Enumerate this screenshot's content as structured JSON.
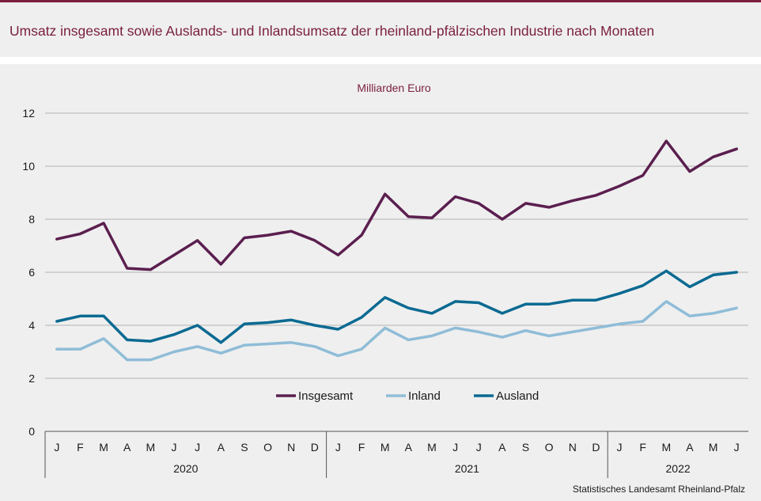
{
  "header": {
    "title": "Umsatz insgesamt sowie Auslands- und Inlandsumsatz der rheinland-pfälzischen Industrie nach Monaten"
  },
  "colors": {
    "accent": "#7a1f3d",
    "panel_background": "#efefef",
    "grid": "#b3b3b3",
    "axis": "#555555"
  },
  "chart_data": {
    "type": "line",
    "subtitle": "Milliarden Euro",
    "ylim": [
      0,
      12
    ],
    "yticks": [
      0,
      2,
      4,
      6,
      8,
      10,
      12
    ],
    "grid": true,
    "legend_position": "bottom-center",
    "categories": [
      "J",
      "F",
      "M",
      "A",
      "M",
      "J",
      "J",
      "A",
      "S",
      "O",
      "N",
      "D",
      "J",
      "F",
      "M",
      "A",
      "M",
      "J",
      "J",
      "A",
      "S",
      "O",
      "N",
      "D",
      "J",
      "F",
      "M",
      "A",
      "M",
      "J"
    ],
    "years": [
      {
        "label": "2020",
        "months": 12
      },
      {
        "label": "2021",
        "months": 12
      },
      {
        "label": "2022",
        "months": 6
      }
    ],
    "series": [
      {
        "name": "Insgesamt",
        "color": "#5b1f4f",
        "values": [
          7.25,
          7.45,
          7.85,
          6.15,
          6.1,
          6.65,
          7.2,
          6.3,
          7.3,
          7.4,
          7.55,
          7.2,
          6.65,
          7.4,
          8.95,
          8.1,
          8.05,
          8.85,
          8.6,
          8.0,
          8.6,
          8.45,
          8.7,
          8.9,
          9.25,
          9.65,
          10.95,
          9.8,
          10.35,
          10.65
        ]
      },
      {
        "name": "Inland",
        "color": "#8fbdd8",
        "values": [
          3.1,
          3.1,
          3.5,
          2.7,
          2.7,
          3.0,
          3.2,
          2.95,
          3.25,
          3.3,
          3.35,
          3.2,
          2.85,
          3.1,
          3.9,
          3.45,
          3.6,
          3.9,
          3.75,
          3.55,
          3.8,
          3.6,
          3.75,
          3.9,
          4.05,
          4.15,
          4.9,
          4.35,
          4.45,
          4.65
        ]
      },
      {
        "name": "Ausland",
        "color": "#0a6a91",
        "values": [
          4.15,
          4.35,
          4.35,
          3.45,
          3.4,
          3.65,
          4.0,
          3.35,
          4.05,
          4.1,
          4.2,
          4.0,
          3.85,
          4.3,
          5.05,
          4.65,
          4.45,
          4.9,
          4.85,
          4.45,
          4.8,
          4.8,
          4.95,
          4.95,
          5.2,
          5.5,
          6.05,
          5.45,
          5.9,
          6.0
        ]
      }
    ]
  },
  "footer": {
    "source": "Statistisches Landesamt  Rheinland-Pfalz"
  }
}
